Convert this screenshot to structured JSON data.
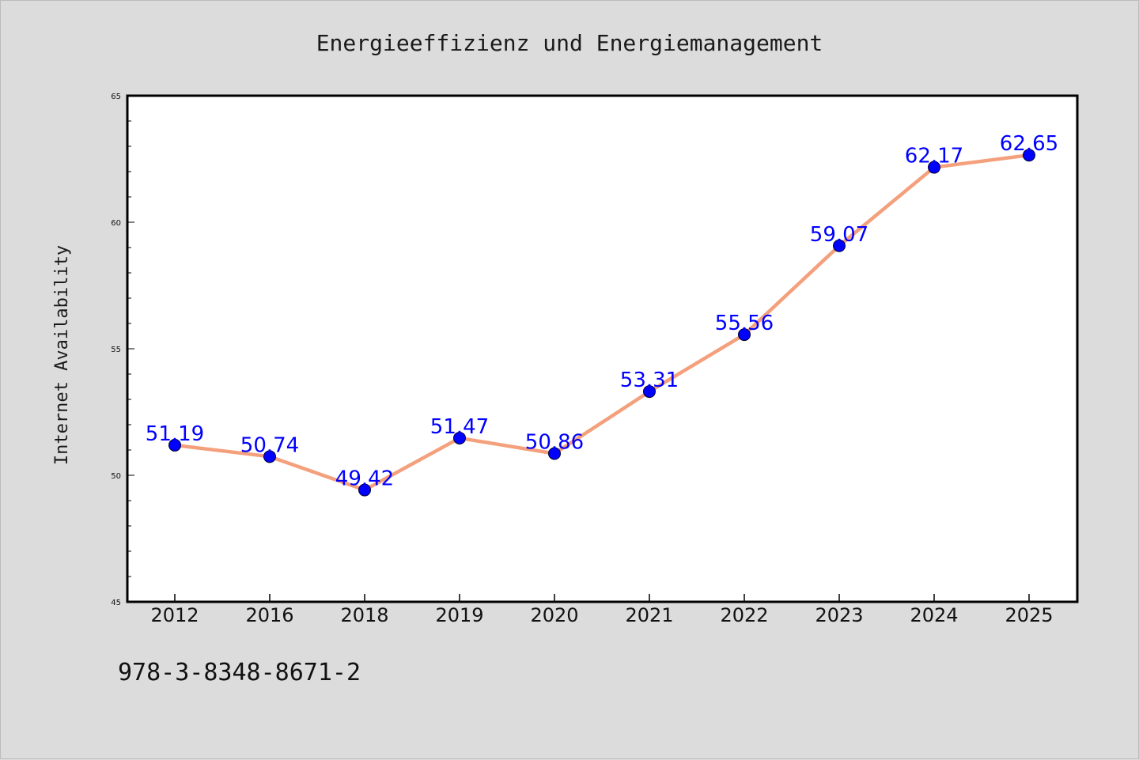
{
  "chart_data": {
    "type": "line",
    "title": "Energieeffizienz und Energiemanagement",
    "xlabel": "",
    "ylabel": "Internet Availability",
    "categories": [
      "2012",
      "2016",
      "2018",
      "2019",
      "2020",
      "2021",
      "2022",
      "2023",
      "2024",
      "2025"
    ],
    "series": [
      {
        "values": [
          51.19,
          50.74,
          49.42,
          51.47,
          50.86,
          53.31,
          55.56,
          59.07,
          62.17,
          62.65
        ],
        "line_color": "#f4a07c",
        "marker_color": "#0000ff"
      }
    ],
    "data_labels": [
      "51.19",
      "50.74",
      "49.42",
      "51.47",
      "50.86",
      "53.31",
      "55.56",
      "59.07",
      "62.17",
      "62.65"
    ],
    "ylim": [
      45,
      65
    ],
    "yticks": [
      "45",
      "50",
      "55",
      "60",
      "65"
    ],
    "grid": false,
    "legend": "none",
    "background_color": "#dcdcdc",
    "plot_background_color": "#ffffff"
  },
  "footer": {
    "isbn": "978-3-8348-8671-2"
  }
}
